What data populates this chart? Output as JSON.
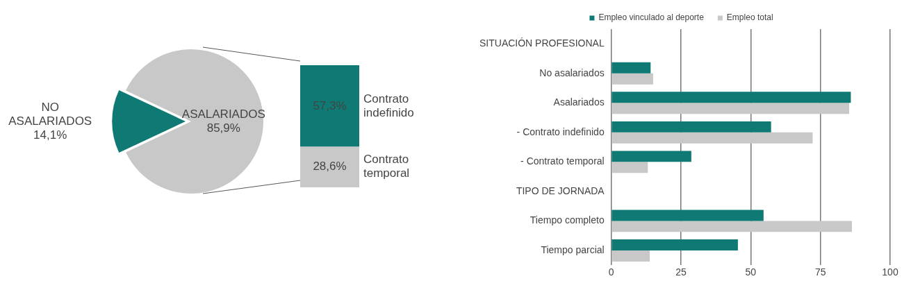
{
  "chart_data": [
    {
      "type": "pie",
      "categories": [
        "NO ASALARIADOS",
        "ASALARIADOS"
      ],
      "values": [
        14.1,
        85.9
      ],
      "colors": [
        "#0e7a73",
        "#c8c8c8"
      ],
      "value_labels": [
        "14,1%",
        "85,9%"
      ],
      "legend": false
    },
    {
      "type": "bar",
      "stacked": true,
      "categories": [
        null
      ],
      "tick_labels": false,
      "legend": false,
      "series": [
        {
          "name": "Contrato temporal",
          "color": "#c8c8c8",
          "values": [
            28.6
          ],
          "value_labels": [
            "28,6%"
          ]
        },
        {
          "name": "Contrato indefinido",
          "color": "#0e7a73",
          "values": [
            57.3
          ],
          "value_labels": [
            "57,3%"
          ]
        }
      ]
    },
    {
      "type": "bar",
      "orientation": "horizontal",
      "categories": [
        "SITUACIÓN PROFESIONAL",
        "No asalariados",
        "Asalariados",
        "- Contrato indefinido",
        "- Contrato temporal",
        "TIPO DE JORNADA",
        "Tiempo completo",
        "Tiempo parcial"
      ],
      "xlim": [
        0,
        100
      ],
      "xticks": [
        0,
        25,
        50,
        75,
        100
      ],
      "grid": "x",
      "legend": "top",
      "series": [
        {
          "name": "Empleo vinculado al deporte",
          "color": "#0e7a73",
          "values": [
            null,
            14.1,
            85.9,
            57.3,
            28.7,
            null,
            54.6,
            45.4
          ]
        },
        {
          "name": "Empleo total",
          "color": "#c8c8c8",
          "values": [
            null,
            15.0,
            85.3,
            72.2,
            13.1,
            null,
            86.3,
            13.8
          ]
        }
      ]
    }
  ]
}
